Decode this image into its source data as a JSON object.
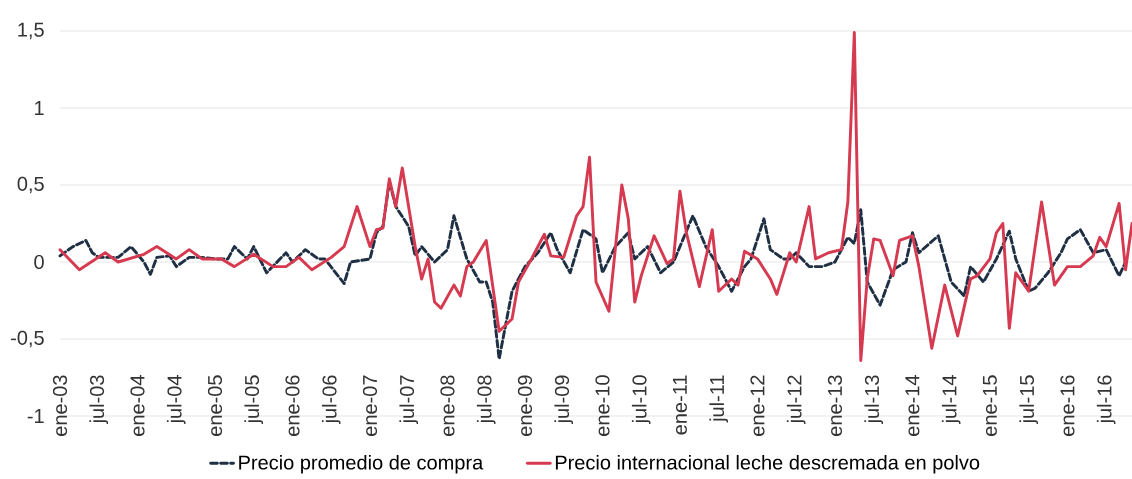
{
  "chart_data": {
    "type": "line",
    "xlim": [
      "2003-01",
      "2016-11"
    ],
    "ylim": [
      -1,
      1.5
    ],
    "yticks": [
      -1,
      {
        "value": -0.5,
        "label": "-0,5"
      },
      0,
      {
        "value": 0.5,
        "label": "0,5"
      },
      1,
      {
        "value": 1.5,
        "label": "1,5"
      }
    ],
    "xticks": [
      {
        "value": "2003-01",
        "label": "ene-03"
      },
      {
        "value": "2003-07",
        "label": "jul-03"
      },
      {
        "value": "2004-01",
        "label": "ene-04"
      },
      {
        "value": "2004-07",
        "label": "jul-04"
      },
      {
        "value": "2005-01",
        "label": "ene-05"
      },
      {
        "value": "2005-07",
        "label": "jul-05"
      },
      {
        "value": "2006-01",
        "label": "ene-06"
      },
      {
        "value": "2006-07",
        "label": "jul-06"
      },
      {
        "value": "2007-01",
        "label": "ene-07"
      },
      {
        "value": "2007-07",
        "label": "jul-07"
      },
      {
        "value": "2008-01",
        "label": "ene-08"
      },
      {
        "value": "2008-07",
        "label": "jul-08"
      },
      {
        "value": "2009-01",
        "label": "ene-09"
      },
      {
        "value": "2009-07",
        "label": "jul-09"
      },
      {
        "value": "2010-01",
        "label": "ene-10"
      },
      {
        "value": "2010-07",
        "label": "jul-10"
      },
      {
        "value": "2011-01",
        "label": "ene-11"
      },
      {
        "value": "2011-07",
        "label": "jul-11"
      },
      {
        "value": "2012-01",
        "label": "ene-12"
      },
      {
        "value": "2012-07",
        "label": "jul-12"
      },
      {
        "value": "2013-01",
        "label": "ene-13"
      },
      {
        "value": "2013-07",
        "label": "jul-13"
      },
      {
        "value": "2014-01",
        "label": "ene-14"
      },
      {
        "value": "2014-07",
        "label": "jul-14"
      },
      {
        "value": "2015-01",
        "label": "ene-15"
      },
      {
        "value": "2015-07",
        "label": "jul-15"
      },
      {
        "value": "2016-01",
        "label": "ene-16"
      },
      {
        "value": "2016-07",
        "label": "jul-16"
      }
    ],
    "grid": "y",
    "legend": "bottom",
    "series": [
      {
        "name": "Precio promedio de compra",
        "color": "#1f2f44",
        "line_style": "dashed",
        "x": [
          "2003-01",
          "2003-03",
          "2003-05",
          "2003-06",
          "2003-07",
          "2003-10",
          "2003-12",
          "2004-02",
          "2004-03",
          "2004-04",
          "2004-06",
          "2004-07",
          "2004-09",
          "2004-11",
          "2005-01",
          "2005-03",
          "2005-04",
          "2005-06",
          "2005-07",
          "2005-09",
          "2005-12",
          "2006-01",
          "2006-03",
          "2006-05",
          "2006-06",
          "2006-09",
          "2006-10",
          "2007-01",
          "2007-02",
          "2007-03",
          "2007-04",
          "2007-05",
          "2007-07",
          "2007-08",
          "2007-09",
          "2007-11",
          "2008-01",
          "2008-02",
          "2008-04",
          "2008-06",
          "2008-07",
          "2008-08",
          "2008-09",
          "2008-11",
          "2009-01",
          "2009-03",
          "2009-05",
          "2009-06",
          "2009-08",
          "2009-10",
          "2009-12",
          "2010-01",
          "2010-03",
          "2010-05",
          "2010-06",
          "2010-08",
          "2010-10",
          "2010-12",
          "2011-03",
          "2011-05",
          "2011-07",
          "2011-09",
          "2011-11",
          "2011-12",
          "2012-02",
          "2012-03",
          "2012-05",
          "2012-06",
          "2012-07",
          "2012-09",
          "2012-11",
          "2013-01",
          "2013-03",
          "2013-04",
          "2013-05",
          "2013-06",
          "2013-08",
          "2013-10",
          "2013-12",
          "2014-01",
          "2014-02",
          "2014-05",
          "2014-07",
          "2014-09",
          "2014-10",
          "2014-12",
          "2015-02",
          "2015-04",
          "2015-05",
          "2015-07",
          "2015-08",
          "2015-10",
          "2015-12",
          "2016-01",
          "2016-03",
          "2016-05",
          "2016-07",
          "2016-09",
          "2016-10"
        ],
        "values": [
          0.04,
          0.1,
          0.14,
          0.06,
          0.03,
          0.03,
          0.1,
          0.0,
          -0.08,
          0.03,
          0.04,
          -0.03,
          0.03,
          0.03,
          0.02,
          0.02,
          0.1,
          0.02,
          0.1,
          -0.07,
          0.06,
          0.0,
          0.08,
          0.02,
          0.02,
          -0.14,
          0.0,
          0.02,
          0.19,
          0.23,
          0.52,
          0.36,
          0.23,
          0.04,
          0.1,
          0.0,
          0.08,
          0.3,
          0.02,
          -0.13,
          -0.13,
          -0.26,
          -0.63,
          -0.19,
          -0.03,
          0.06,
          0.19,
          0.08,
          -0.07,
          0.21,
          0.15,
          -0.07,
          0.1,
          0.19,
          0.02,
          0.1,
          -0.07,
          0.0,
          0.3,
          0.1,
          -0.03,
          -0.19,
          -0.03,
          0.02,
          0.28,
          0.08,
          0.02,
          0.02,
          0.06,
          -0.03,
          -0.03,
          0.0,
          0.16,
          0.12,
          0.34,
          -0.13,
          -0.28,
          -0.05,
          0.0,
          0.19,
          0.06,
          0.17,
          -0.13,
          -0.22,
          -0.03,
          -0.13,
          0.02,
          0.2,
          0.02,
          -0.19,
          -0.17,
          -0.07,
          0.06,
          0.15,
          0.21,
          0.06,
          0.08,
          -0.09,
          0.0
        ]
      },
      {
        "name": "Precio internacional leche descremada en polvo",
        "color": "#d63a50",
        "line_style": "solid",
        "x": [
          "2003-01",
          "2003-04",
          "2003-08",
          "2003-10",
          "2004-02",
          "2004-04",
          "2004-07",
          "2004-09",
          "2004-11",
          "2005-02",
          "2005-04",
          "2005-07",
          "2005-10",
          "2005-12",
          "2006-02",
          "2006-04",
          "2006-07",
          "2006-09",
          "2006-11",
          "2007-01",
          "2007-02",
          "2007-03",
          "2007-04",
          "2007-05",
          "2007-06",
          "2007-08",
          "2007-09",
          "2007-10",
          "2007-11",
          "2007-12",
          "2008-02",
          "2008-03",
          "2008-04",
          "2008-05",
          "2008-07",
          "2008-09",
          "2008-11",
          "2008-12",
          "2009-02",
          "2009-04",
          "2009-05",
          "2009-07",
          "2009-09",
          "2009-10",
          "2009-11",
          "2009-12",
          "2010-02",
          "2010-04",
          "2010-05",
          "2010-06",
          "2010-07",
          "2010-09",
          "2010-11",
          "2010-12",
          "2011-01",
          "2011-02",
          "2011-04",
          "2011-06",
          "2011-07",
          "2011-09",
          "2011-10",
          "2011-11",
          "2012-01",
          "2012-03",
          "2012-04",
          "2012-06",
          "2012-07",
          "2012-09",
          "2012-10",
          "2012-12",
          "2013-02",
          "2013-03",
          "2013-04",
          "2013-05",
          "2013-06",
          "2013-07",
          "2013-08",
          "2013-10",
          "2013-11",
          "2014-01",
          "2014-02",
          "2014-04",
          "2014-06",
          "2014-08",
          "2014-10",
          "2014-11",
          "2015-01",
          "2015-02",
          "2015-03",
          "2015-04",
          "2015-05",
          "2015-07",
          "2015-09",
          "2015-11",
          "2016-01",
          "2016-03",
          "2016-05",
          "2016-06",
          "2016-07",
          "2016-09",
          "2016-10",
          "2016-11"
        ],
        "values": [
          0.08,
          -0.05,
          0.06,
          0.0,
          0.05,
          0.1,
          0.02,
          0.08,
          0.02,
          0.02,
          -0.03,
          0.05,
          -0.03,
          -0.03,
          0.03,
          -0.05,
          0.03,
          0.1,
          0.36,
          0.1,
          0.21,
          0.22,
          0.54,
          0.36,
          0.61,
          0.1,
          -0.11,
          0.02,
          -0.26,
          -0.3,
          -0.15,
          -0.22,
          -0.03,
          0.0,
          0.14,
          -0.45,
          -0.37,
          -0.13,
          0.02,
          0.18,
          0.04,
          0.03,
          0.3,
          0.36,
          0.68,
          -0.13,
          -0.32,
          0.5,
          0.28,
          -0.26,
          -0.09,
          0.17,
          -0.01,
          0.02,
          0.46,
          0.19,
          -0.16,
          0.21,
          -0.19,
          -0.11,
          -0.15,
          0.07,
          0.02,
          -0.11,
          -0.21,
          0.06,
          0.0,
          0.36,
          0.02,
          0.06,
          0.08,
          0.39,
          1.49,
          -0.64,
          -0.11,
          0.15,
          0.14,
          -0.09,
          0.14,
          0.17,
          -0.03,
          -0.56,
          -0.15,
          -0.48,
          -0.11,
          -0.09,
          0.02,
          0.19,
          0.25,
          -0.43,
          -0.07,
          -0.19,
          0.39,
          -0.15,
          -0.03,
          -0.03,
          0.04,
          0.16,
          0.1,
          0.38,
          -0.05,
          0.25
        ]
      }
    ]
  }
}
